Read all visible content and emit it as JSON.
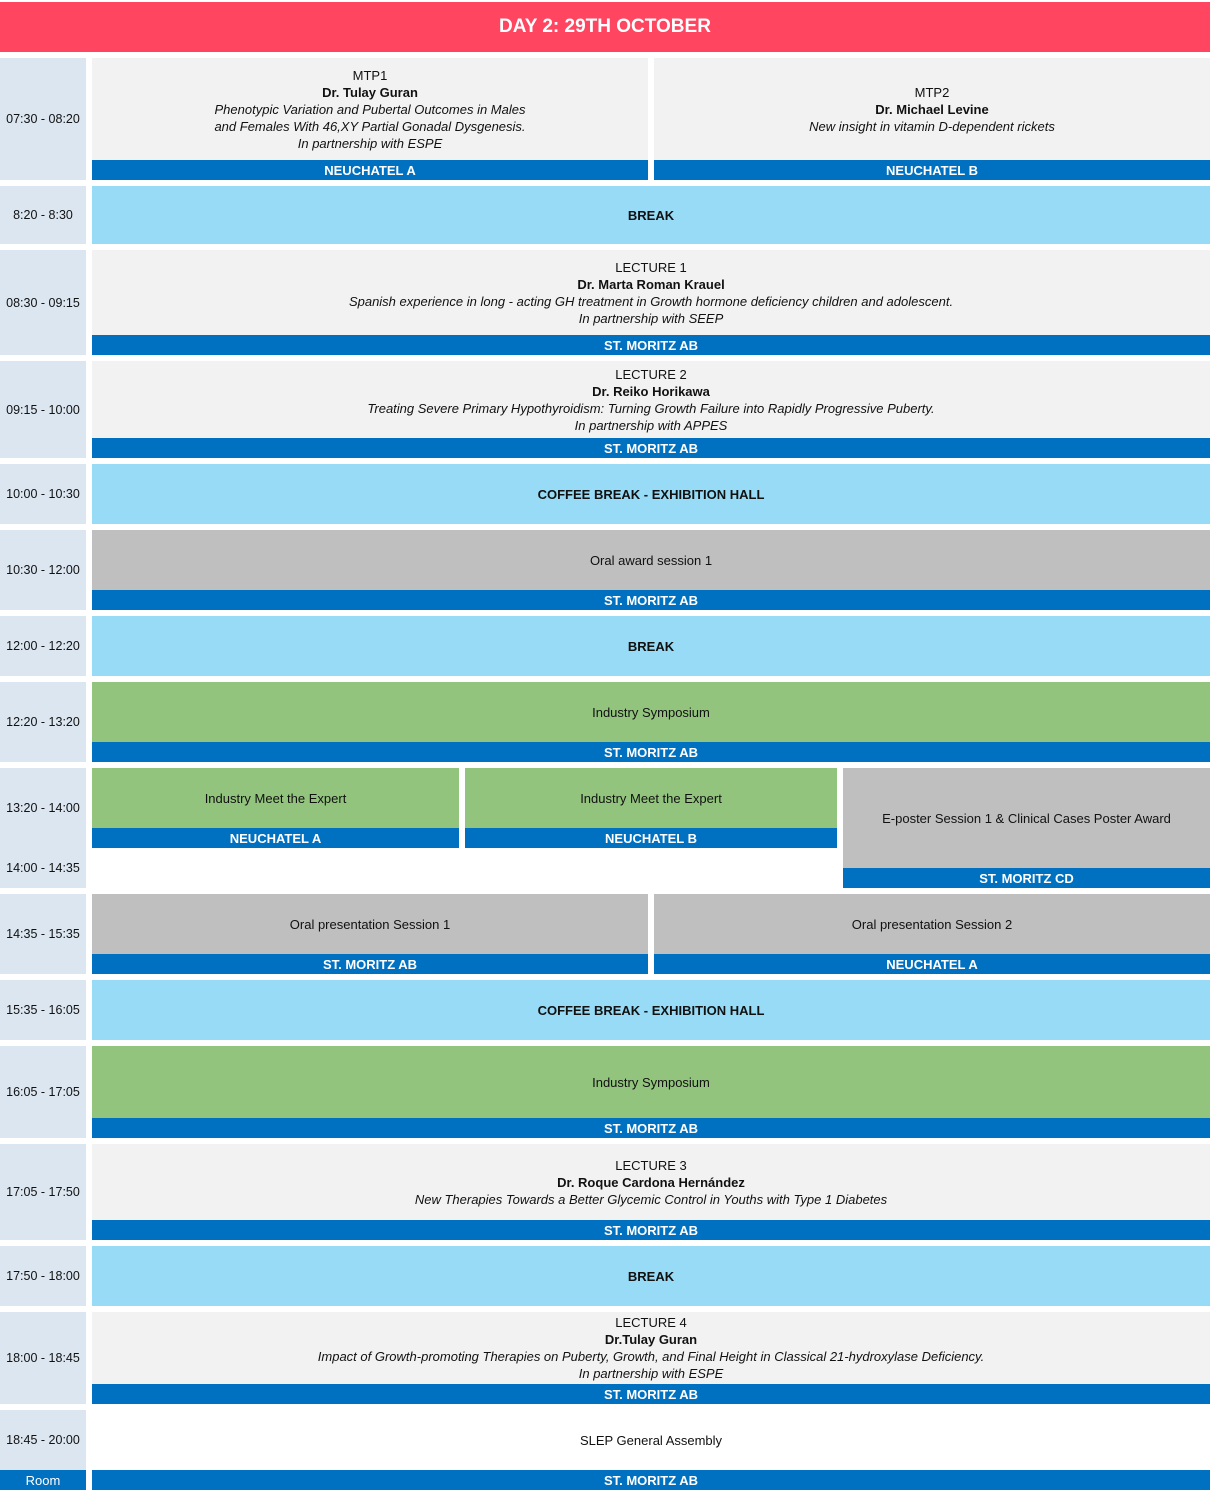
{
  "header": {
    "title": "DAY 2: 29TH OCTOBER"
  },
  "room_label": "Room",
  "rows": [
    {
      "times": [
        "07:30 - 08:20"
      ],
      "cells": [
        {
          "kind": "talk",
          "lines": [
            {
              "text": "MTP1"
            },
            {
              "text": "Dr. Tulay Guran",
              "style": "bold"
            },
            {
              "text": "Phenotypic Variation and Pubertal Outcomes in Males",
              "style": "italic"
            },
            {
              "text": "and Females With 46,XY Partial Gonadal Dysgenesis.",
              "style": "italic"
            },
            {
              "text": "In partnership with ESPE",
              "style": "italic"
            }
          ],
          "room": "NEUCHATEL A"
        },
        {
          "kind": "talk",
          "lines": [
            {
              "text": "MTP2"
            },
            {
              "text": "Dr. Michael Levine",
              "style": "bold"
            },
            {
              "text": "New insight in vitamin D-dependent rickets",
              "style": "italic"
            }
          ],
          "room": "NEUCHATEL B"
        }
      ]
    },
    {
      "times": [
        "8:20 - 8:30"
      ],
      "cells": [
        {
          "kind": "break",
          "lines": [
            {
              "text": "BREAK",
              "style": "bold"
            }
          ]
        }
      ]
    },
    {
      "times": [
        "08:30 - 09:15"
      ],
      "cells": [
        {
          "kind": "talk",
          "lines": [
            {
              "text": "LECTURE 1"
            },
            {
              "text": "Dr. Marta Roman Krauel",
              "style": "bold"
            },
            {
              "text": "Spanish experience in long - acting GH treatment in Growth hormone deficiency children and adolescent.",
              "style": "italic"
            },
            {
              "text": "In partnership with SEEP",
              "style": "italic"
            }
          ],
          "room": "ST. MORITZ AB"
        }
      ]
    },
    {
      "times": [
        "09:15 - 10:00"
      ],
      "cells": [
        {
          "kind": "talk",
          "lines": [
            {
              "text": "LECTURE 2"
            },
            {
              "text": "Dr.  Reiko Horikawa",
              "style": "bold"
            },
            {
              "text": "Treating Severe Primary Hypothyroidism: Turning Growth Failure into Rapidly Progressive Puberty.",
              "style": "italic"
            },
            {
              "text": "In partnership with APPES",
              "style": "italic"
            }
          ],
          "room": "ST. MORITZ AB"
        }
      ]
    },
    {
      "times": [
        "10:00 - 10:30"
      ],
      "cells": [
        {
          "kind": "break",
          "lines": [
            {
              "text": "COFFEE BREAK - EXHIBITION HALL",
              "style": "bold"
            }
          ]
        }
      ]
    },
    {
      "times": [
        "10:30 - 12:00"
      ],
      "cells": [
        {
          "kind": "oral",
          "lines": [
            {
              "text": "Oral award session 1"
            }
          ],
          "room": "ST. MORITZ AB"
        }
      ]
    },
    {
      "times": [
        "12:00 - 12:20"
      ],
      "cells": [
        {
          "kind": "break",
          "lines": [
            {
              "text": "BREAK",
              "style": "bold"
            }
          ]
        }
      ]
    },
    {
      "times": [
        "12:20 - 13:20"
      ],
      "cells": [
        {
          "kind": "industry",
          "lines": [
            {
              "text": "Industry Symposium"
            }
          ],
          "room": "ST. MORITZ AB"
        }
      ]
    },
    {
      "times": [
        "13:20 - 14:00",
        "14:00 - 14:35"
      ],
      "cells": [
        {
          "kind": "industry",
          "lines": [
            {
              "text": "Industry Meet the Expert"
            }
          ],
          "room": "NEUCHATEL A"
        },
        {
          "kind": "industry",
          "lines": [
            {
              "text": "Industry Meet the Expert"
            }
          ],
          "room": "NEUCHATEL B"
        },
        {
          "kind": "oral",
          "lines": [
            {
              "text": "E-poster Session 1 & Clinical Cases Poster Award"
            }
          ],
          "room": "ST. MORITZ CD"
        }
      ]
    },
    {
      "times": [
        "14:35 - 15:35"
      ],
      "cells": [
        {
          "kind": "oral",
          "lines": [
            {
              "text": "Oral presentation Session 1"
            }
          ],
          "room": "ST. MORITZ AB"
        },
        {
          "kind": "oral",
          "lines": [
            {
              "text": "Oral presentation Session 2"
            }
          ],
          "room": "NEUCHATEL A"
        }
      ]
    },
    {
      "times": [
        "15:35 - 16:05"
      ],
      "cells": [
        {
          "kind": "break",
          "lines": [
            {
              "text": "COFFEE BREAK - EXHIBITION HALL",
              "style": "bold"
            }
          ]
        }
      ]
    },
    {
      "times": [
        "16:05 - 17:05"
      ],
      "cells": [
        {
          "kind": "industry",
          "lines": [
            {
              "text": "Industry Symposium"
            }
          ],
          "room": "ST. MORITZ AB"
        }
      ]
    },
    {
      "times": [
        "17:05 - 17:50"
      ],
      "cells": [
        {
          "kind": "talk",
          "lines": [
            {
              "text": "LECTURE 3"
            },
            {
              "text": "Dr. Roque Cardona Hernández",
              "style": "bold"
            },
            {
              "text": "New Therapies Towards a Better Glycemic Control in Youths with Type 1 Diabetes",
              "style": "italic"
            }
          ],
          "room": "ST. MORITZ AB"
        }
      ]
    },
    {
      "times": [
        "17:50 - 18:00"
      ],
      "cells": [
        {
          "kind": "break",
          "lines": [
            {
              "text": "BREAK",
              "style": "bold"
            }
          ]
        }
      ]
    },
    {
      "times": [
        "18:00 - 18:45"
      ],
      "cells": [
        {
          "kind": "talk",
          "lines": [
            {
              "text": "LECTURE 4"
            },
            {
              "text": "Dr.Tulay Guran",
              "style": "bold"
            },
            {
              "text": "Impact of Growth-promoting Therapies on Puberty, Growth, and Final Height in Classical 21-hydroxylase Deficiency.",
              "style": "italic"
            },
            {
              "text": "In partnership with ESPE",
              "style": "italic"
            }
          ],
          "room": "ST. MORITZ AB"
        }
      ]
    },
    {
      "times": [
        "18:45 - 20:00"
      ],
      "cells": [
        {
          "kind": "plain",
          "lines": [
            {
              "text": "SLEP General Assembly"
            }
          ],
          "room": "ST. MORITZ AB"
        }
      ]
    }
  ]
}
